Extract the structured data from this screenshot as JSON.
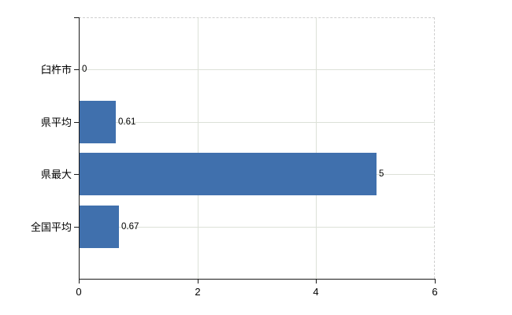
{
  "chart_data": {
    "type": "bar",
    "orientation": "horizontal",
    "title": "",
    "xlabel": "",
    "ylabel": "",
    "categories": [
      "臼杵市",
      "県平均",
      "県最大",
      "全国平均"
    ],
    "values": [
      0,
      0.61,
      5,
      0.67
    ],
    "value_labels": [
      "0",
      "0.61",
      "5",
      "0.67"
    ],
    "xlim": [
      0,
      6
    ],
    "x_ticks": [
      0,
      2,
      4,
      6
    ],
    "x_tick_labels": [
      "0",
      "2",
      "4",
      "6"
    ],
    "grid": true,
    "legend": false,
    "colors": {
      "bar": "#4070ad",
      "axis": "#1a1a1a",
      "gridline": "#dce1d8",
      "frame_dashed": "#cfcfcf",
      "text": "#000000",
      "background": "#ffffff"
    }
  }
}
